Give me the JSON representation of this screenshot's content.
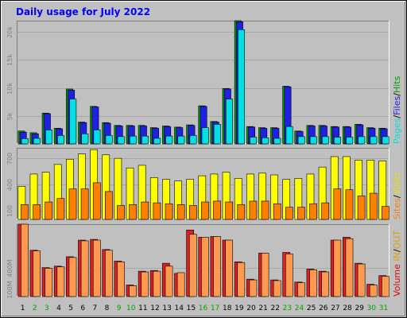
{
  "chart_data": [
    {
      "type": "bar",
      "title": "Daily usage for July 2022",
      "categories": [
        "1",
        "2",
        "3",
        "4",
        "5",
        "6",
        "7",
        "8",
        "9",
        "10",
        "11",
        "12",
        "13",
        "14",
        "15",
        "16",
        "17",
        "18",
        "19",
        "20",
        "21",
        "22",
        "23",
        "24",
        "25",
        "26",
        "27",
        "28",
        "29",
        "30",
        "31"
      ],
      "weekend_days": [
        "2",
        "3",
        "9",
        "10",
        "16",
        "17",
        "23",
        "24",
        "30",
        "31"
      ],
      "y_ticks": [
        "5k",
        "10k",
        "15k",
        "20k"
      ],
      "ylim": [
        0,
        22000
      ],
      "legend": [
        {
          "text": "Pages",
          "color": "#00e0e0"
        },
        {
          "text": "/",
          "color": "#000000"
        },
        {
          "text": "Files",
          "color": "#2020e0"
        },
        {
          "text": "/",
          "color": "#000000"
        },
        {
          "text": "Hits",
          "color": "#00a000"
        }
      ],
      "series": [
        {
          "name": "Hits",
          "color": "#00a000",
          "values": [
            2300,
            2000,
            5500,
            2800,
            9800,
            3900,
            6700,
            3800,
            3300,
            3300,
            3300,
            2900,
            3200,
            3000,
            3400,
            6800,
            4000,
            9900,
            22000,
            3100,
            2900,
            2900,
            10300,
            2300,
            3300,
            3300,
            3100,
            3100,
            3500,
            2900,
            2800
          ]
        },
        {
          "name": "Files",
          "color": "#2020e0",
          "values": [
            2100,
            1800,
            5400,
            2700,
            9600,
            3800,
            6600,
            3700,
            3200,
            3200,
            3200,
            2800,
            3100,
            2900,
            3300,
            6700,
            3900,
            9800,
            21800,
            3000,
            2800,
            2800,
            10200,
            2200,
            3200,
            3200,
            3000,
            3000,
            3400,
            2800,
            2700
          ]
        },
        {
          "name": "Pages",
          "color": "#00e0e0",
          "values": [
            950,
            1000,
            2500,
            1500,
            8000,
            1800,
            2500,
            1500,
            1300,
            1400,
            1400,
            1000,
            1400,
            1400,
            1500,
            2900,
            3500,
            8000,
            20400,
            1200,
            1100,
            1000,
            3100,
            1300,
            1300,
            1300,
            1200,
            1200,
            1300,
            1300,
            1300
          ]
        }
      ]
    },
    {
      "type": "bar",
      "categories": [
        "1",
        "2",
        "3",
        "4",
        "5",
        "6",
        "7",
        "8",
        "9",
        "10",
        "11",
        "12",
        "13",
        "14",
        "15",
        "16",
        "17",
        "18",
        "19",
        "20",
        "21",
        "22",
        "23",
        "24",
        "25",
        "26",
        "27",
        "28",
        "29",
        "30",
        "31"
      ],
      "y_ticks": [
        "100",
        "400",
        "700"
      ],
      "ylim": [
        0,
        820
      ],
      "legend": [
        {
          "text": "Sites",
          "color": "#ff8000"
        },
        {
          "text": "/",
          "color": "#000000"
        },
        {
          "text": "Visits",
          "color": "#e0e000"
        }
      ],
      "series": [
        {
          "name": "Visits",
          "color": "#ffff00",
          "values": [
            380,
            520,
            540,
            630,
            690,
            750,
            800,
            740,
            700,
            590,
            620,
            480,
            460,
            440,
            460,
            500,
            520,
            540,
            470,
            520,
            530,
            510,
            460,
            470,
            520,
            600,
            720,
            720,
            680,
            680,
            670
          ]
        },
        {
          "name": "Sites",
          "color": "#ff8000",
          "values": [
            170,
            170,
            200,
            240,
            350,
            350,
            420,
            320,
            160,
            170,
            200,
            190,
            180,
            170,
            160,
            200,
            210,
            200,
            170,
            210,
            210,
            180,
            140,
            140,
            180,
            190,
            350,
            340,
            270,
            300,
            150
          ]
        }
      ]
    },
    {
      "type": "bar",
      "categories": [
        "1",
        "2",
        "3",
        "4",
        "5",
        "6",
        "7",
        "8",
        "9",
        "10",
        "11",
        "12",
        "13",
        "14",
        "15",
        "16",
        "17",
        "18",
        "19",
        "20",
        "21",
        "22",
        "23",
        "24",
        "25",
        "26",
        "27",
        "28",
        "29",
        "30",
        "31"
      ],
      "y_ticks": [
        "100M",
        "400M"
      ],
      "ylim": [
        0,
        1000
      ],
      "legend": [
        {
          "text": "Volume",
          "color": "#e00000"
        },
        {
          "text": "IN",
          "color": "#e0a000"
        },
        {
          "text": "/",
          "color": "#000000"
        },
        {
          "text": "OUT",
          "color": "#e0a000"
        }
      ],
      "series": [
        {
          "name": "IN",
          "color": "#e02020",
          "values": [
            1000,
            640,
            400,
            420,
            550,
            780,
            790,
            650,
            490,
            160,
            350,
            360,
            460,
            320,
            920,
            820,
            830,
            780,
            480,
            240,
            600,
            230,
            610,
            200,
            380,
            350,
            780,
            820,
            460,
            170,
            290
          ]
        },
        {
          "name": "OUT",
          "color": "#ff9a50",
          "values": [
            1000,
            630,
            390,
            410,
            540,
            770,
            780,
            640,
            480,
            150,
            340,
            350,
            420,
            330,
            860,
            820,
            830,
            780,
            470,
            230,
            600,
            220,
            590,
            190,
            370,
            340,
            780,
            800,
            450,
            160,
            280
          ]
        }
      ]
    }
  ]
}
